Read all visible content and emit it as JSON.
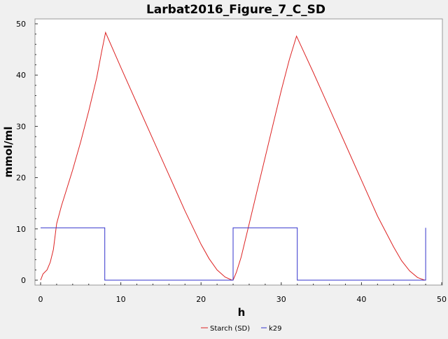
{
  "chart_data": {
    "type": "line",
    "title": "Larbat2016_Figure_7_C_SD",
    "xlabel": "h",
    "ylabel": "mmol/ml",
    "xlim": [
      0,
      50
    ],
    "ylim": [
      0,
      50
    ],
    "x_ticks": [
      0,
      10,
      20,
      30,
      40,
      50
    ],
    "y_ticks": [
      0,
      10,
      20,
      30,
      40,
      50
    ],
    "grid": false,
    "legend_position": "bottom",
    "series": [
      {
        "name": "Starch (SD)",
        "color": "#dd2222",
        "points": [
          [
            0,
            0
          ],
          [
            0.3,
            1.2
          ],
          [
            0.8,
            2.0
          ],
          [
            1.2,
            3.5
          ],
          [
            1.6,
            6.0
          ],
          [
            2.0,
            11.0
          ],
          [
            2.6,
            14.5
          ],
          [
            3.2,
            17.5
          ],
          [
            4,
            21.5
          ],
          [
            5,
            27
          ],
          [
            6,
            33
          ],
          [
            7,
            39.5
          ],
          [
            7.6,
            44.5
          ],
          [
            8.1,
            48.3
          ],
          [
            10,
            41.5
          ],
          [
            12,
            34.5
          ],
          [
            14,
            27.5
          ],
          [
            16,
            20.5
          ],
          [
            18,
            13.5
          ],
          [
            20,
            7.0
          ],
          [
            21,
            4.2
          ],
          [
            22,
            2.0
          ],
          [
            23,
            0.6
          ],
          [
            23.8,
            0.05
          ],
          [
            24,
            0
          ],
          [
            24.4,
            1.5
          ],
          [
            25,
            4.5
          ],
          [
            26,
            11
          ],
          [
            27,
            17.5
          ],
          [
            28,
            24
          ],
          [
            29,
            30.5
          ],
          [
            30,
            37
          ],
          [
            31,
            43
          ],
          [
            31.9,
            47.6
          ],
          [
            34,
            40.5
          ],
          [
            36,
            33.5
          ],
          [
            38,
            26.5
          ],
          [
            40,
            19.5
          ],
          [
            42,
            12.5
          ],
          [
            44,
            6.5
          ],
          [
            45,
            3.8
          ],
          [
            46,
            1.8
          ],
          [
            47,
            0.5
          ],
          [
            47.8,
            0.05
          ],
          [
            48,
            0
          ]
        ]
      },
      {
        "name": "k29",
        "color": "#3333cc",
        "points": [
          [
            0,
            10.2
          ],
          [
            8,
            10.2
          ],
          [
            8,
            0
          ],
          [
            24,
            0
          ],
          [
            24,
            10.2
          ],
          [
            32,
            10.2
          ],
          [
            32,
            0
          ],
          [
            48,
            0
          ],
          [
            48,
            10.2
          ]
        ]
      }
    ]
  }
}
